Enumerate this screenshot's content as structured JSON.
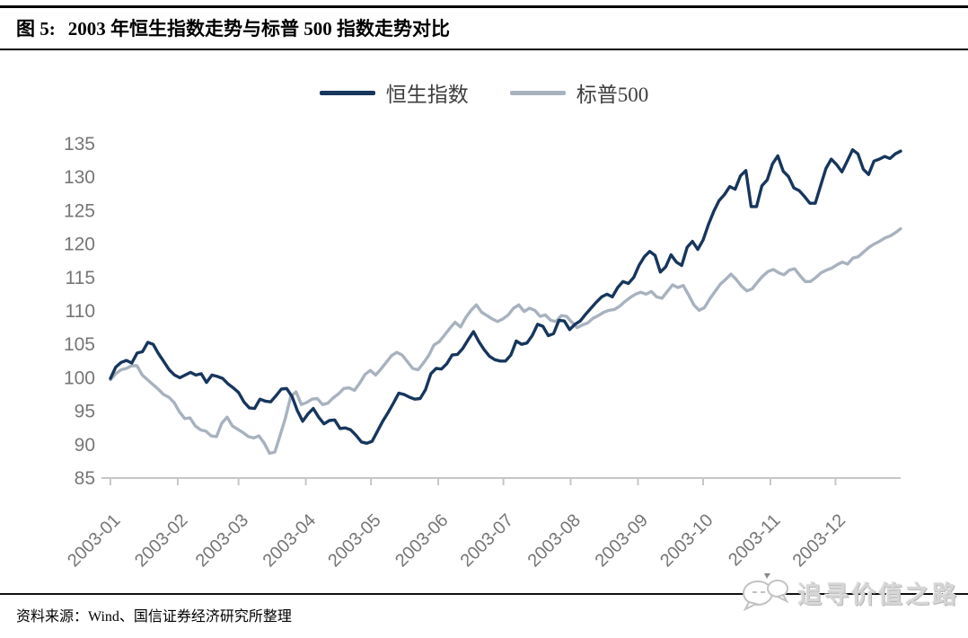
{
  "header": {
    "figure_label": "图 5:",
    "title": "2003 年恒生指数走势与标普 500 指数走势对比"
  },
  "legend": [
    {
      "label": "恒生指数",
      "color": "#17365d"
    },
    {
      "label": "标普500",
      "color": "#a8b2bf"
    }
  ],
  "footer": {
    "source": "资料来源：Wind、国信证券经济研究所整理"
  },
  "watermark": {
    "text": "追寻价值之路"
  },
  "colors": {
    "hsi_line": "#17365d",
    "sp500_line": "#a8b2bf",
    "axis": "#c6c6c6",
    "tick_label": "#767676"
  },
  "chart_data": {
    "type": "line",
    "title": "2003 年恒生指数走势与标普 500 指数走势对比",
    "xlabel": "",
    "ylabel": "",
    "grid": false,
    "legend_position": "top-center",
    "ylim": [
      85,
      137.5
    ],
    "y_axis": {
      "ticks": [
        85,
        90,
        95,
        100,
        105,
        110,
        115,
        120,
        125,
        130,
        135
      ]
    },
    "x_axis": {
      "tick_labels": [
        "2003-01",
        "2003-02",
        "2003-03",
        "2003-04",
        "2003-05",
        "2003-06",
        "2003-07",
        "2003-08",
        "2003-09",
        "2003-10",
        "2003-11",
        "2003-12"
      ],
      "tick_days": [
        0,
        31,
        59,
        90,
        120,
        151,
        181,
        212,
        243,
        273,
        304,
        334
      ],
      "total_days": 364
    },
    "series": [
      {
        "name": "恒生指数",
        "data_name": "hsi-line",
        "color": "#17365d",
        "line_width": 3.4,
        "values": [
          99.9,
          101.6,
          102.3,
          102.6,
          102.2,
          103.7,
          103.9,
          105.3,
          105.0,
          103.6,
          102.4,
          101.2,
          100.4,
          100.0,
          100.4,
          100.8,
          100.4,
          100.6,
          99.3,
          100.4,
          100.2,
          99.9,
          99.1,
          98.5,
          97.8,
          96.4,
          95.5,
          95.4,
          96.8,
          96.5,
          96.4,
          97.3,
          98.3,
          98.4,
          97.2,
          95.1,
          93.5,
          94.6,
          95.4,
          94.1,
          93.1,
          93.6,
          93.7,
          92.4,
          92.5,
          92.2,
          91.4,
          90.4,
          90.2,
          90.5,
          92.0,
          93.5,
          94.8,
          96.2,
          97.7,
          97.5,
          97.1,
          96.8,
          96.9,
          98.2,
          100.6,
          101.4,
          101.3,
          102.1,
          103.4,
          103.5,
          104.4,
          105.7,
          106.9,
          105.4,
          104.2,
          103.2,
          102.7,
          102.5,
          102.5,
          103.4,
          105.5,
          105.0,
          105.2,
          106.3,
          108.0,
          107.7,
          106.3,
          106.6,
          108.6,
          108.5,
          107.2,
          108.0,
          108.5,
          109.5,
          110.4,
          111.3,
          112.1,
          112.5,
          112.1,
          113.5,
          114.4,
          114.1,
          115.0,
          116.8,
          118.1,
          118.9,
          118.3,
          115.8,
          116.6,
          118.4,
          117.3,
          116.8,
          119.5,
          120.4,
          119.2,
          120.6,
          122.9,
          124.9,
          126.5,
          127.4,
          128.6,
          128.2,
          130.2,
          131.0,
          125.6,
          125.6,
          128.7,
          129.6,
          132.0,
          133.2,
          130.9,
          130.1,
          128.4,
          128.0,
          127.1,
          126.1,
          126.1,
          128.7,
          131.3,
          132.7,
          131.9,
          130.8,
          132.4,
          134.1,
          133.5,
          131.2,
          130.4,
          132.4,
          132.7,
          133.1,
          132.8,
          133.5,
          133.9
        ]
      },
      {
        "name": "标普500",
        "data_name": "sp500-line",
        "color": "#a8b2bf",
        "line_width": 3.4,
        "values": [
          99.7,
          100.6,
          101.2,
          101.4,
          101.8,
          101.8,
          100.4,
          99.7,
          99.0,
          98.3,
          97.5,
          97.1,
          96.3,
          94.9,
          93.9,
          94.0,
          92.8,
          92.2,
          92.0,
          91.3,
          91.2,
          93.2,
          94.1,
          92.8,
          92.3,
          91.8,
          91.2,
          91.0,
          91.3,
          90.2,
          88.7,
          88.9,
          91.4,
          94.0,
          97.2,
          97.9,
          96.0,
          96.3,
          96.8,
          96.9,
          96.0,
          96.2,
          97.0,
          97.6,
          98.4,
          98.5,
          98.1,
          99.2,
          100.5,
          101.1,
          100.4,
          101.3,
          102.3,
          103.3,
          103.8,
          103.4,
          102.4,
          101.4,
          101.2,
          102.2,
          103.3,
          104.9,
          105.4,
          106.4,
          107.4,
          108.3,
          107.6,
          109.0,
          110.1,
          110.9,
          109.8,
          109.3,
          108.8,
          108.4,
          108.8,
          109.4,
          110.4,
          110.9,
          109.9,
          110.4,
          110.1,
          109.2,
          109.4,
          108.6,
          108.4,
          109.3,
          109.2,
          108.3,
          107.5,
          107.9,
          108.2,
          108.9,
          109.3,
          109.8,
          110.1,
          110.2,
          110.7,
          111.4,
          112.0,
          112.5,
          112.8,
          112.5,
          112.9,
          112.1,
          111.9,
          112.9,
          113.9,
          113.5,
          113.8,
          112.4,
          110.9,
          110.1,
          110.5,
          111.8,
          112.9,
          114.0,
          114.7,
          115.5,
          114.7,
          113.7,
          113.0,
          113.3,
          114.3,
          115.2,
          115.9,
          116.2,
          115.7,
          115.4,
          116.1,
          116.3,
          115.3,
          114.4,
          114.4,
          115.0,
          115.7,
          116.1,
          116.4,
          116.9,
          117.3,
          117.0,
          117.9,
          118.1,
          118.8,
          119.5,
          120.0,
          120.4,
          120.9,
          121.2,
          121.7,
          122.3
        ]
      }
    ]
  }
}
